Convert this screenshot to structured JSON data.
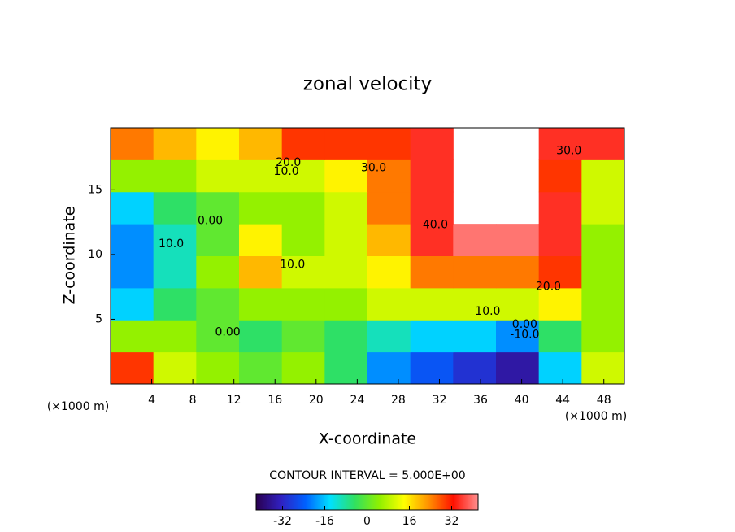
{
  "chart_data": {
    "type": "contour",
    "title": "zonal velocity",
    "xlabel": "X-coordinate",
    "ylabel": "Z-coordinate",
    "x_unit": "(×1000 m)",
    "x_unit_right": "(×1000 m)",
    "xlim": [
      0,
      50
    ],
    "ylim": [
      0,
      19.8
    ],
    "xticks": [
      4,
      8,
      12,
      16,
      20,
      24,
      28,
      32,
      36,
      40,
      44,
      48
    ],
    "yticks": [
      5,
      10,
      15
    ],
    "values": [
      [
        30,
        10,
        5,
        0,
        5,
        -5,
        -20,
        -25,
        -30,
        -35,
        -15,
        10
      ],
      [
        5,
        5,
        0,
        -5,
        0,
        -5,
        -10,
        -15,
        -15,
        -20,
        -5,
        5
      ],
      [
        -15,
        -5,
        0,
        5,
        5,
        5,
        10,
        10,
        10,
        10,
        15,
        5
      ],
      [
        -20,
        -10,
        5,
        20,
        10,
        10,
        15,
        25,
        25,
        25,
        30,
        5
      ],
      [
        -20,
        -10,
        0,
        15,
        5,
        10,
        20,
        35,
        40,
        40,
        35,
        5
      ],
      [
        -15,
        -5,
        0,
        5,
        5,
        10,
        25,
        35,
        null,
        null,
        35,
        10
      ],
      [
        5,
        5,
        10,
        10,
        10,
        15,
        25,
        35,
        null,
        null,
        30,
        10
      ],
      [
        25,
        20,
        15,
        20,
        30,
        30,
        30,
        35,
        null,
        null,
        35,
        35
      ]
    ],
    "contour_labels": [
      {
        "label": "30.0",
        "x": 25.6,
        "y": 16.7
      },
      {
        "label": "20.0",
        "x": 17.3,
        "y": 17.1
      },
      {
        "label": "10.0",
        "x": 17.1,
        "y": 16.4
      },
      {
        "label": "40.0",
        "x": 31.6,
        "y": 12.3
      },
      {
        "label": "30.0",
        "x": 44.6,
        "y": 18
      },
      {
        "label": "0.00",
        "x": 9.7,
        "y": 12.6
      },
      {
        "label": "10.0",
        "x": 5.9,
        "y": 10.8
      },
      {
        "label": "10.0",
        "x": 17.7,
        "y": 9.2
      },
      {
        "label": "20.0",
        "x": 42.6,
        "y": 7.5
      },
      {
        "label": "10.0",
        "x": 36.7,
        "y": 5.6
      },
      {
        "label": "0.00",
        "x": 40.3,
        "y": 4.6
      },
      {
        "label": "-10.0",
        "x": 40.3,
        "y": 3.8
      },
      {
        "label": "0.00",
        "x": 11.4,
        "y": 4
      }
    ],
    "contour_interval_text": "CONTOUR INTERVAL = 5.000E+00",
    "clim": [
      -42,
      42
    ],
    "colorbar_ticks": [
      -32,
      -16,
      0,
      16,
      32
    ],
    "colormap": [
      "#2a0050",
      "#3020c0",
      "#0060ff",
      "#00e0ff",
      "#30e060",
      "#90f000",
      "#ffff00",
      "#ff9000",
      "#ff1000",
      "#ff9090"
    ]
  }
}
